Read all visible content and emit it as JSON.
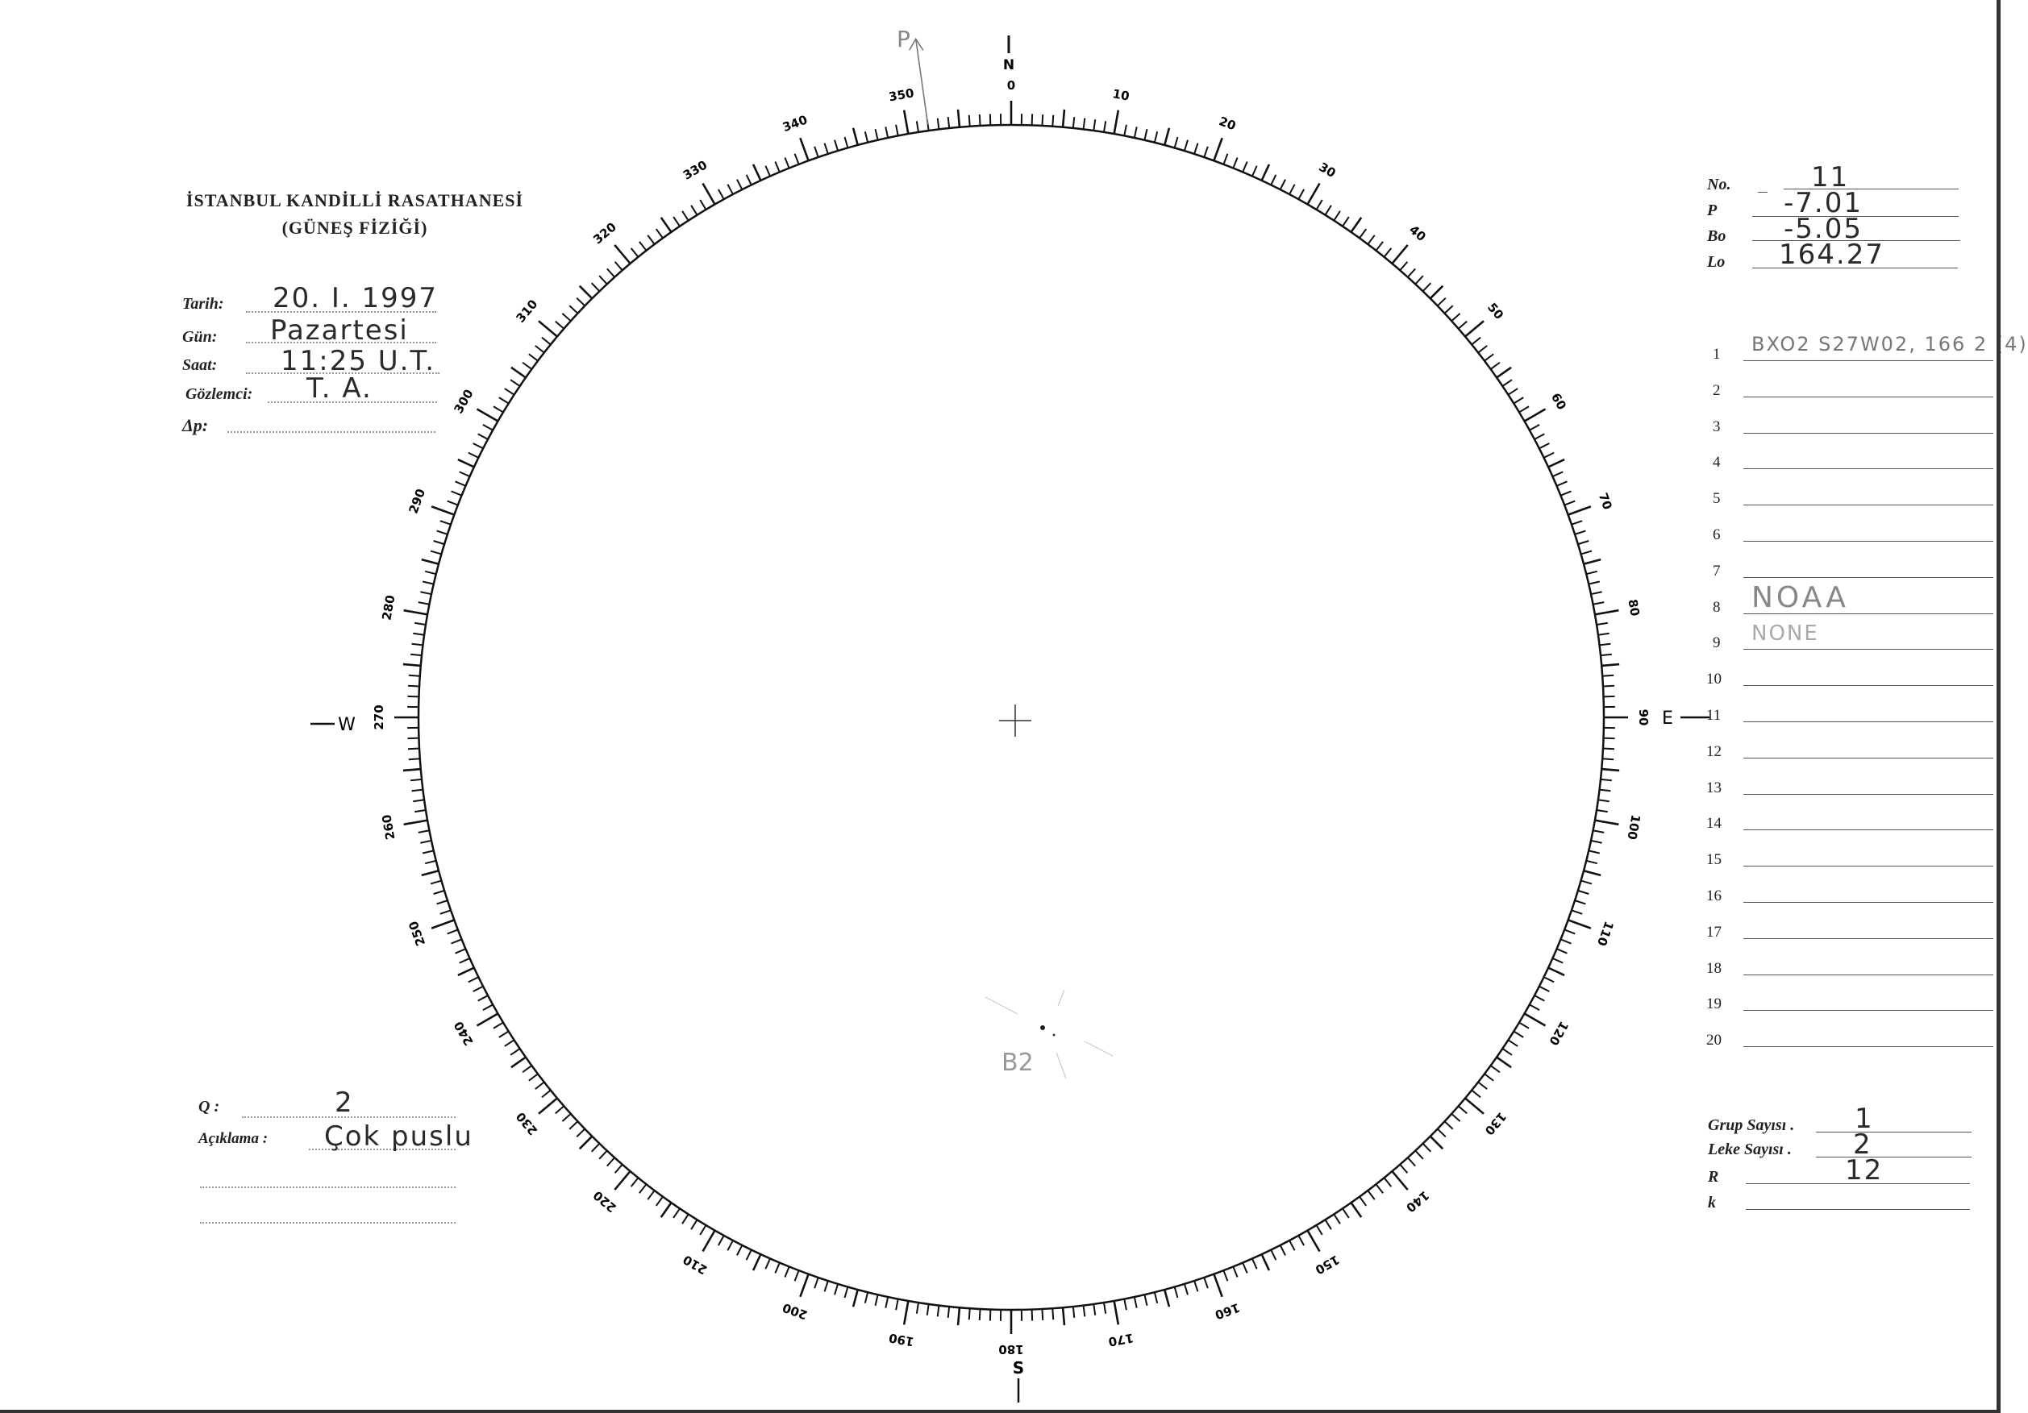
{
  "header": {
    "institution": "İSTANBUL KANDİLLİ RASATHANESİ",
    "department": "(GÜNEŞ FİZİĞİ)"
  },
  "observation": {
    "tarih_label": "Tarih:",
    "tarih_value": "20. I. 1997",
    "gun_label": "Gün:",
    "gun_value": "Pazartesi",
    "saat_label": "Saat:",
    "saat_value": "11:25  U.T.",
    "gozlemci_label": "Gözlemci:",
    "gozlemci_value": "T. A.",
    "dp_label": "Δp:",
    "dp_value": ""
  },
  "ephemeris": {
    "no_label": "No.",
    "no_value": "11",
    "p_label": "P",
    "p_value": "-7.01",
    "bo_label": "Bo",
    "bo_value": "-5.05",
    "lo_label": "Lo",
    "lo_value": "164.27"
  },
  "groups": {
    "rows": [
      {
        "n": "1",
        "text": "BXO2  S27W02, 166  2 (4)"
      },
      {
        "n": "2",
        "text": ""
      },
      {
        "n": "3",
        "text": ""
      },
      {
        "n": "4",
        "text": ""
      },
      {
        "n": "5",
        "text": ""
      },
      {
        "n": "6",
        "text": ""
      },
      {
        "n": "7",
        "text": ""
      },
      {
        "n": "8",
        "text": "NOAA"
      },
      {
        "n": "9",
        "text": "NONE"
      },
      {
        "n": "10",
        "text": ""
      },
      {
        "n": "11",
        "text": ""
      },
      {
        "n": "12",
        "text": ""
      },
      {
        "n": "13",
        "text": ""
      },
      {
        "n": "14",
        "text": ""
      },
      {
        "n": "15",
        "text": ""
      },
      {
        "n": "16",
        "text": ""
      },
      {
        "n": "17",
        "text": ""
      },
      {
        "n": "18",
        "text": ""
      },
      {
        "n": "19",
        "text": ""
      },
      {
        "n": "20",
        "text": ""
      }
    ]
  },
  "quality": {
    "q_label": "Q :",
    "q_value": "2",
    "aciklama_label": "Açıklama :",
    "aciklama_value": "Çok puslu"
  },
  "counts": {
    "grup_label": "Grup Sayısı .",
    "grup_value": "1",
    "leke_label": "Leke Sayısı .",
    "leke_value": "2",
    "r_label": "R",
    "r_value": "12",
    "k_label": "k",
    "k_value": ""
  },
  "dial": {
    "north": "N",
    "south": "S",
    "east": "E",
    "west": "W",
    "p_marker": "P",
    "p_angle_deg": -8,
    "spot_label": "B2",
    "tick_labels": [
      "0",
      "10",
      "20",
      "30",
      "40",
      "50",
      "60",
      "70",
      "80",
      "90",
      "100",
      "110",
      "120",
      "130",
      "140",
      "150",
      "160",
      "170",
      "180",
      "190",
      "200",
      "210",
      "220",
      "230",
      "240",
      "250",
      "260",
      "270",
      "280",
      "290",
      "300",
      "310",
      "320",
      "330",
      "340",
      "350"
    ]
  }
}
